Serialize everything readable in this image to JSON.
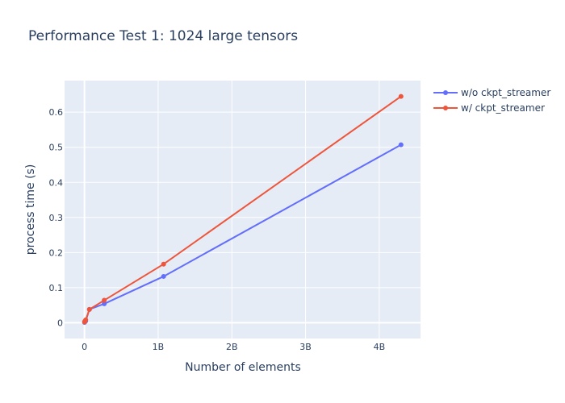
{
  "chart_data": {
    "type": "line",
    "title": "Performance Test 1: 1024 large tensors",
    "xlabel": "Number of elements",
    "ylabel": "process time (s)",
    "xlim": [
      -270000000,
      4560000000
    ],
    "ylim": [
      -0.045,
      0.69
    ],
    "x_ticks": [
      {
        "value": 0,
        "label": "0"
      },
      {
        "value": 1000000000,
        "label": "1B"
      },
      {
        "value": 2000000000,
        "label": "2B"
      },
      {
        "value": 3000000000,
        "label": "3B"
      },
      {
        "value": 4000000000,
        "label": "4B"
      }
    ],
    "y_ticks": [
      {
        "value": 0,
        "label": "0"
      },
      {
        "value": 0.1,
        "label": "0.1"
      },
      {
        "value": 0.2,
        "label": "0.2"
      },
      {
        "value": 0.3,
        "label": "0.3"
      },
      {
        "value": 0.4,
        "label": "0.4"
      },
      {
        "value": 0.5,
        "label": "0.5"
      },
      {
        "value": 0.6,
        "label": "0.6"
      }
    ],
    "grid": true,
    "legend_position": "top-right",
    "series": [
      {
        "name": "w/o ckpt_streamer",
        "color": "#636efa",
        "points": [
          {
            "x": 1048576,
            "y": 0.001
          },
          {
            "x": 4194304,
            "y": 0.002
          },
          {
            "x": 16777216,
            "y": 0.005
          },
          {
            "x": 67108864,
            "y": 0.038
          },
          {
            "x": 268435456,
            "y": 0.054
          },
          {
            "x": 1073741824,
            "y": 0.132
          },
          {
            "x": 4294967296,
            "y": 0.507
          }
        ]
      },
      {
        "name": "w/ ckpt_streamer",
        "color": "#ef553b",
        "points": [
          {
            "x": 1048576,
            "y": 0.002
          },
          {
            "x": 4194304,
            "y": 0.004
          },
          {
            "x": 16777216,
            "y": 0.008
          },
          {
            "x": 67108864,
            "y": 0.038
          },
          {
            "x": 268435456,
            "y": 0.064
          },
          {
            "x": 1073741824,
            "y": 0.167
          },
          {
            "x": 4294967296,
            "y": 0.645
          }
        ]
      }
    ]
  }
}
